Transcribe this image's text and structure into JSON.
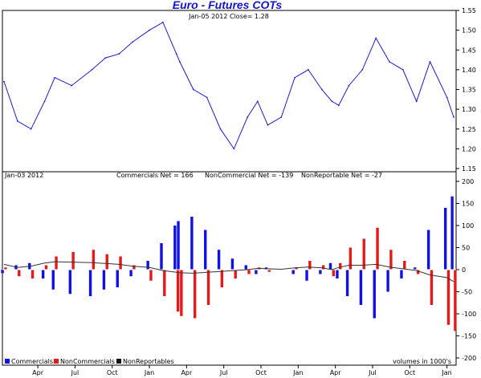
{
  "title": "Euro - Futures COTs",
  "price_panel": {
    "subtitle": "Jan-05 2012   Close= 1.28"
  },
  "cot_panel": {
    "date_label": "Jan-03 2012",
    "commercials_net_label": "Commercials Net = 166",
    "noncommercials_net_label": "NonCommercial Net = -139",
    "nonreportable_net_label": "NonReportable Net = -27",
    "units_note": "volumes in 1000's"
  },
  "legend": {
    "items": [
      {
        "label": "Commercials",
        "color": "#1010e8"
      },
      {
        "label": "NonCommercials",
        "color": "#e81818"
      },
      {
        "label": "NonReportables",
        "color": "#111111"
      }
    ],
    "placement": "bottom-left"
  },
  "colors": {
    "price_line": "#1a1ad8",
    "commercials": "#1010e8",
    "noncommercials": "#e81818",
    "nonreportables": "#333333",
    "title": "#1414d0"
  },
  "chart_data": [
    {
      "type": "line",
      "title": "Euro - Futures COTs",
      "subtitle": "Jan-05 2012   Close= 1.28",
      "ylim": [
        1.15,
        1.55
      ],
      "yticks": [
        1.15,
        1.2,
        1.25,
        1.3,
        1.35,
        1.4,
        1.45,
        1.5,
        1.55
      ],
      "ytick_labels": [
        "1.15",
        "1.20",
        "1.25",
        "1.30",
        "1.35",
        "1.40",
        "1.45",
        "1.50",
        "1.55"
      ],
      "grid": false,
      "series": [
        {
          "name": "Close",
          "x": [
            0,
            4,
            8,
            12,
            15,
            20,
            26,
            30,
            34,
            38,
            43,
            47,
            51,
            52,
            56,
            60,
            64,
            68,
            72,
            75,
            78,
            82,
            86,
            90,
            94,
            97,
            99,
            102,
            106,
            110,
            114,
            118,
            122,
            126,
            131,
            133
          ],
          "y": [
            1.37,
            1.27,
            1.25,
            1.32,
            1.38,
            1.36,
            1.4,
            1.43,
            1.44,
            1.47,
            1.5,
            1.52,
            1.44,
            1.42,
            1.35,
            1.33,
            1.25,
            1.2,
            1.28,
            1.32,
            1.26,
            1.28,
            1.38,
            1.4,
            1.35,
            1.32,
            1.31,
            1.36,
            1.4,
            1.48,
            1.42,
            1.4,
            1.32,
            1.42,
            1.33,
            1.28
          ]
        }
      ]
    },
    {
      "type": "bar",
      "title": "",
      "ylim": [
        -200,
        200
      ],
      "yticks": [
        -200,
        -150,
        -100,
        -50,
        0,
        50,
        100,
        150,
        200
      ],
      "ytick_labels": [
        "-200",
        "-150",
        "-100",
        "-50",
        "0",
        "50",
        "100",
        "150",
        "200"
      ],
      "xticks": [
        {
          "label": "Apr",
          "x": 10
        },
        {
          "label": "Jul",
          "x": 21
        },
        {
          "label": "Oct",
          "x": 32
        },
        {
          "label": "Jan",
          "x": 43
        },
        {
          "label": "Apr",
          "x": 54
        },
        {
          "label": "Jul",
          "x": 65
        },
        {
          "label": "Oct",
          "x": 76
        },
        {
          "label": "Jan",
          "x": 87
        },
        {
          "label": "Apr",
          "x": 98
        },
        {
          "label": "Jul",
          "x": 109
        },
        {
          "label": "Oct",
          "x": 120
        },
        {
          "label": "Jan",
          "x": 131
        }
      ],
      "grid": false,
      "series": [
        {
          "name": "Commercials",
          "x": [
            0,
            4,
            8,
            12,
            15,
            20,
            26,
            30,
            34,
            38,
            43,
            47,
            51,
            52,
            56,
            60,
            64,
            68,
            72,
            75,
            78,
            82,
            86,
            90,
            94,
            97,
            99,
            102,
            106,
            110,
            114,
            118,
            122,
            126,
            131,
            133
          ],
          "y": [
            -8,
            10,
            15,
            -20,
            -45,
            -55,
            -60,
            -45,
            -40,
            -15,
            20,
            60,
            100,
            110,
            120,
            90,
            45,
            25,
            10,
            -10,
            5,
            0,
            -10,
            -25,
            -10,
            15,
            -20,
            -60,
            -80,
            -110,
            -50,
            -20,
            5,
            90,
            140,
            166
          ]
        },
        {
          "name": "NonCommercials",
          "x": [
            0,
            4,
            8,
            12,
            15,
            20,
            26,
            30,
            34,
            38,
            43,
            47,
            51,
            52,
            56,
            60,
            64,
            68,
            72,
            75,
            78,
            82,
            86,
            90,
            94,
            97,
            99,
            102,
            106,
            110,
            114,
            118,
            122,
            126,
            131,
            133
          ],
          "y": [
            5,
            -15,
            -20,
            10,
            30,
            40,
            45,
            35,
            30,
            10,
            -25,
            -60,
            -95,
            -105,
            -110,
            -80,
            -40,
            -20,
            -10,
            5,
            -5,
            0,
            5,
            20,
            10,
            -15,
            15,
            50,
            70,
            95,
            45,
            20,
            -10,
            -80,
            -125,
            -139
          ]
        },
        {
          "name": "NonReportables",
          "x": [
            0,
            4,
            8,
            12,
            15,
            20,
            26,
            30,
            34,
            38,
            43,
            47,
            51,
            52,
            56,
            60,
            64,
            68,
            72,
            75,
            78,
            82,
            86,
            90,
            94,
            97,
            99,
            102,
            106,
            110,
            114,
            118,
            122,
            126,
            131,
            133
          ],
          "y": [
            12,
            5,
            8,
            15,
            18,
            17,
            16,
            14,
            12,
            8,
            5,
            -2,
            -6,
            -7,
            -8,
            -6,
            -4,
            -2,
            0,
            3,
            2,
            1,
            4,
            6,
            4,
            0,
            5,
            10,
            10,
            12,
            6,
            2,
            -2,
            -12,
            -18,
            -27
          ]
        }
      ],
      "units_note": "volumes in 1000's"
    }
  ]
}
